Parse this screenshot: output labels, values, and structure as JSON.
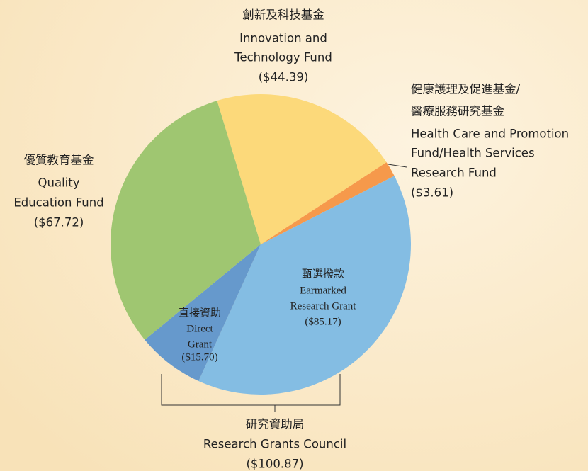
{
  "chart_data": {
    "type": "pie",
    "categories": [
      [
        "創新及科技基金",
        "Innovation and",
        "Technology Fund"
      ],
      [
        "健康護理及促進基金/",
        "醫療服務研究基金",
        "Health Care and Promotion",
        "Fund/Health Services",
        "Research Fund"
      ],
      [
        "甄選撥款",
        "Earmarked",
        "Research Grant"
      ],
      [
        "直接資助",
        "Direct",
        "Grant"
      ],
      [
        "優質教育基金",
        "Quality",
        "Education Fund"
      ]
    ],
    "values": [
      44.39,
      3.61,
      85.17,
      15.7,
      67.72
    ],
    "value_labels": [
      "($44.39)",
      "($3.61)",
      "($85.17)",
      "($15.70)",
      "($67.72)"
    ],
    "colors": [
      "#fcd97a",
      "#f6994b",
      "#84bde3",
      "#6699cc",
      "#9fc671"
    ],
    "annotations": [
      {
        "lines": [
          "研究資助局",
          "Research Grants Council"
        ],
        "value": 100.87,
        "value_label": "($100.87)"
      }
    ]
  }
}
